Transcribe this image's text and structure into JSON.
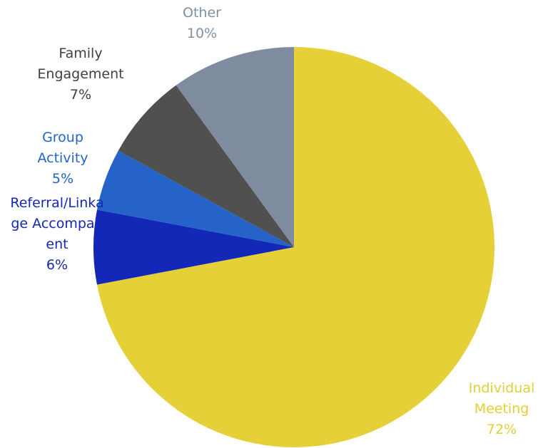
{
  "chart_data": {
    "type": "pie",
    "categories": [
      "Individual Meeting",
      "Referral/Linkage Accompanent",
      "Group Activity",
      "Family Engagement",
      "Other"
    ],
    "values": [
      72,
      6,
      5,
      7,
      10
    ],
    "value_labels": [
      "72%",
      "6%",
      "5%",
      "7%",
      "10%"
    ],
    "colors": [
      "#e5d038",
      "#1428b8",
      "#2563c9",
      "#505050",
      "#7f8b9e"
    ],
    "label_colors": [
      "#e3cf37",
      "#1428b4",
      "#2565c8",
      "#404040",
      "#8090a3"
    ]
  }
}
